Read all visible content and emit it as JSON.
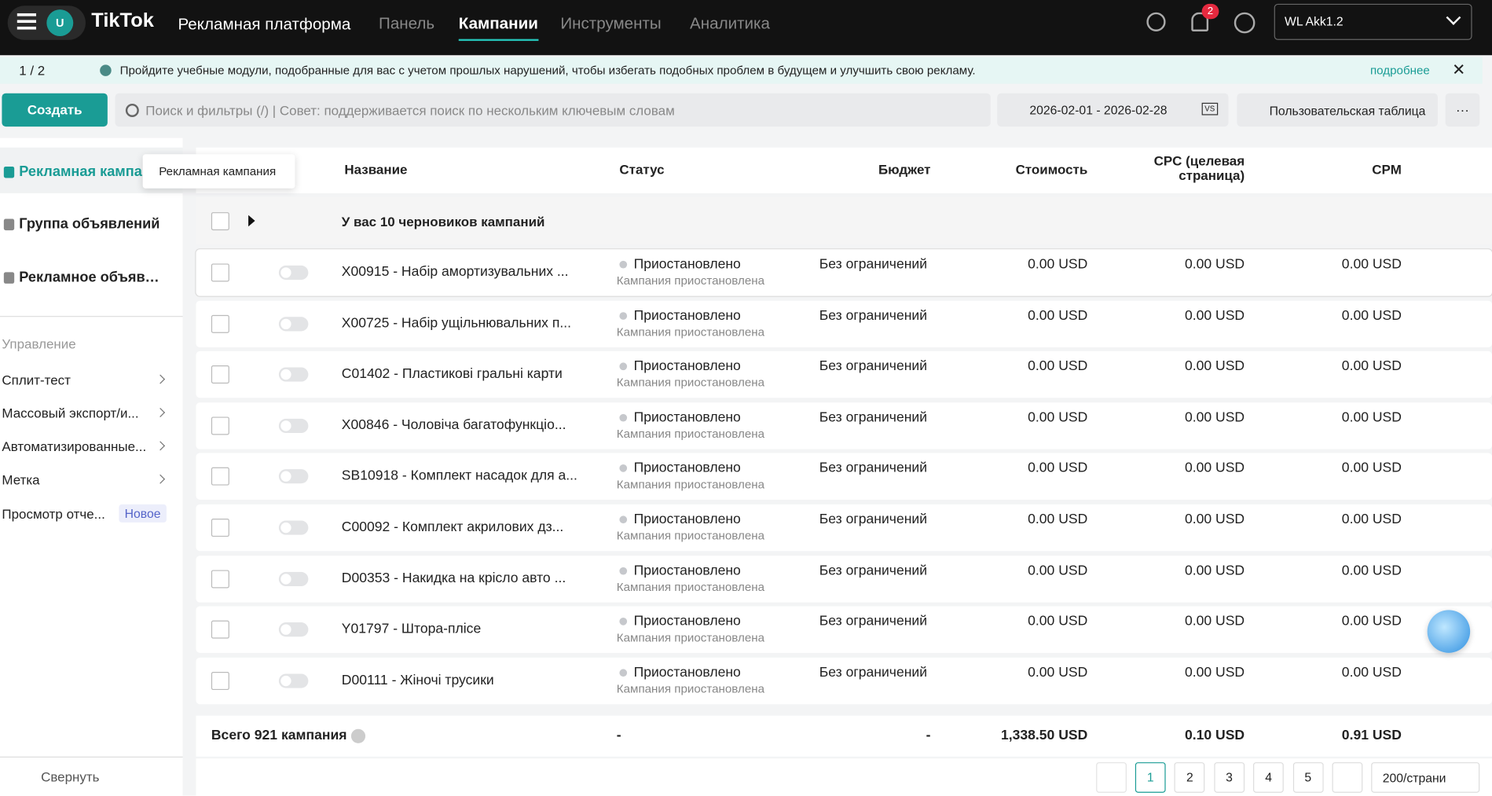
{
  "header": {
    "logo": "TikTok",
    "platform": "Рекламная платформа",
    "avatar": "U",
    "nav": [
      "Панель",
      "Кампании",
      "Инструменты",
      "Аналитика"
    ],
    "notifications": "2",
    "account": "WL Akk1.2"
  },
  "banner": {
    "pager": "1 / 2",
    "text": "Пройдите учебные модули, подобранные для вас с учетом прошлых нарушений, чтобы избегать подобных проблем в будущем и улучшить свою рекламу.",
    "link": "подробнее"
  },
  "toolbar": {
    "create": "Создать",
    "search": "Поиск и фильтры (/) | Совет: поддерживается поиск по нескольким ключевым словам",
    "date_range": "2026-02-01 - 2026-02-28",
    "vs": "VS",
    "custom_table": "Пользовательская таблица",
    "more": "···"
  },
  "sidebar": {
    "levels": [
      "Рекламная кампания",
      "Группа объявлений",
      "Рекламное объявле..."
    ],
    "tooltip": "Рекламная кампания",
    "section": "Управление",
    "items": [
      "Сплит-тест",
      "Массовый экспорт/и...",
      "Автоматизированные...",
      "Метка",
      "Просмотр отче..."
    ],
    "badge": "Новое",
    "collapse": "Свернуть"
  },
  "table": {
    "columns": [
      "Название",
      "Статус",
      "Бюджет",
      "Стоимость",
      "CPC (целевая страница)",
      "CPM"
    ],
    "drafts": "У вас 10 черновиков кампаний",
    "rows": [
      {
        "name": "X00915 - Набір амортизувальних ...",
        "status": "Приостановлено",
        "substatus": "Кампания приостановлена",
        "budget": "Без ограничений",
        "cost": "0.00 USD",
        "cpc": "0.00 USD",
        "cpm": "0.00 USD"
      },
      {
        "name": "X00725 - Набір ущільнювальних п...",
        "status": "Приостановлено",
        "substatus": "Кампания приостановлена",
        "budget": "Без ограничений",
        "cost": "0.00 USD",
        "cpc": "0.00 USD",
        "cpm": "0.00 USD"
      },
      {
        "name": "C01402 - Пластикові гральні карти",
        "status": "Приостановлено",
        "substatus": "Кампания приостановлена",
        "budget": "Без ограничений",
        "cost": "0.00 USD",
        "cpc": "0.00 USD",
        "cpm": "0.00 USD"
      },
      {
        "name": "X00846 - Чоловіча багатофункціо...",
        "status": "Приостановлено",
        "substatus": "Кампания приостановлена",
        "budget": "Без ограничений",
        "cost": "0.00 USD",
        "cpc": "0.00 USD",
        "cpm": "0.00 USD"
      },
      {
        "name": "SB10918 - Комплект насадок для а...",
        "status": "Приостановлено",
        "substatus": "Кампания приостановлена",
        "budget": "Без ограничений",
        "cost": "0.00 USD",
        "cpc": "0.00 USD",
        "cpm": "0.00 USD"
      },
      {
        "name": "C00092 - Комплект акрилових дз...",
        "status": "Приостановлено",
        "substatus": "Кампания приостановлена",
        "budget": "Без ограничений",
        "cost": "0.00 USD",
        "cpc": "0.00 USD",
        "cpm": "0.00 USD"
      },
      {
        "name": "D00353 - Накидка на крісло авто ...",
        "status": "Приостановлено",
        "substatus": "Кампания приостановлена",
        "budget": "Без ограничений",
        "cost": "0.00 USD",
        "cpc": "0.00 USD",
        "cpm": "0.00 USD"
      },
      {
        "name": "Y01797 - Штора-плісе",
        "status": "Приостановлено",
        "substatus": "Кампания приостановлена",
        "budget": "Без ограничений",
        "cost": "0.00 USD",
        "cpc": "0.00 USD",
        "cpm": "0.00 USD"
      },
      {
        "name": "D00111 - Жіночі трусики",
        "status": "Приостановлено",
        "substatus": "Кампания приостановлена",
        "budget": "Без ограничений",
        "cost": "0.00 USD",
        "cpc": "0.00 USD",
        "cpm": "0.00 USD"
      }
    ],
    "totals": [
      "Всего 921 кампания",
      "-",
      "-",
      "1,338.50 USD",
      "0.10 USD",
      "0.91 USD"
    ]
  },
  "pagination": {
    "pages": [
      "1",
      "2",
      "3",
      "4",
      "5"
    ],
    "per_page": "200/страни"
  }
}
